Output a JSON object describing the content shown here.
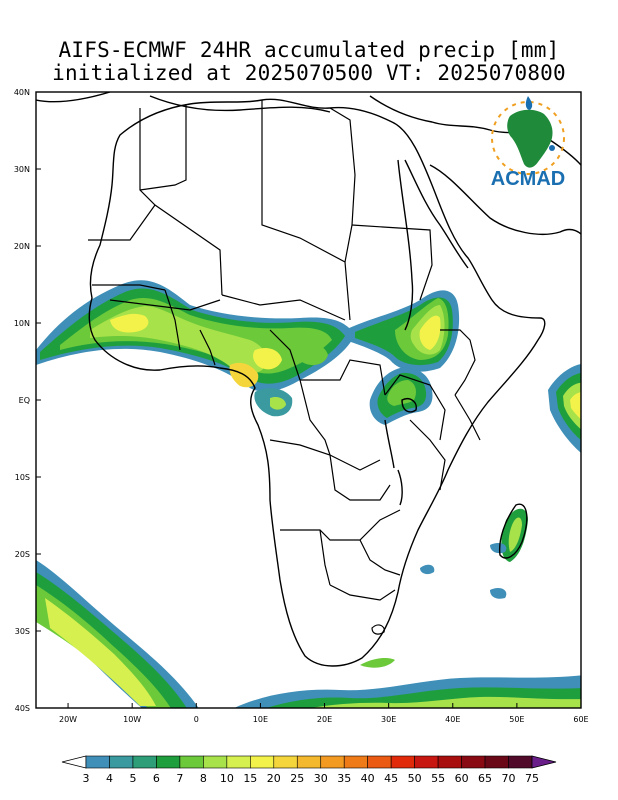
{
  "title": {
    "line1": "AIFS-ECMWF 24HR accumulated precip [mm]",
    "line2": "initialized at 2025070500 VT: 2025070800"
  },
  "logo": {
    "text": "ACMAD",
    "icon": "africa-logo-icon"
  },
  "map": {
    "lon_range": [
      -25,
      60
    ],
    "lat_range": [
      -40,
      40
    ],
    "lat_labels": [
      "40N",
      "30N",
      "20N",
      "10N",
      "EQ",
      "10S",
      "20S",
      "30S",
      "40S"
    ],
    "lon_labels": [
      "20W",
      "10W",
      "0",
      "10E",
      "20E",
      "30E",
      "40E",
      "50E",
      "60E"
    ]
  },
  "colorbar": {
    "labels": [
      "3",
      "4",
      "5",
      "6",
      "7",
      "8",
      "10",
      "15",
      "20",
      "25",
      "30",
      "35",
      "40",
      "45",
      "50",
      "55",
      "60",
      "65",
      "70",
      "75"
    ],
    "colors": [
      "#ffffff",
      "#3f8fb8",
      "#3a9aa0",
      "#2e9e78",
      "#1f9e3e",
      "#6cc93a",
      "#a7e24a",
      "#d6f050",
      "#f2f24a",
      "#f4d63c",
      "#f4b82e",
      "#f29a22",
      "#ee7a18",
      "#ea5a12",
      "#e02a0a",
      "#c81610",
      "#a80e0e",
      "#8a0a14",
      "#6a0818",
      "#520a2a",
      "#6a1e8a"
    ]
  }
}
